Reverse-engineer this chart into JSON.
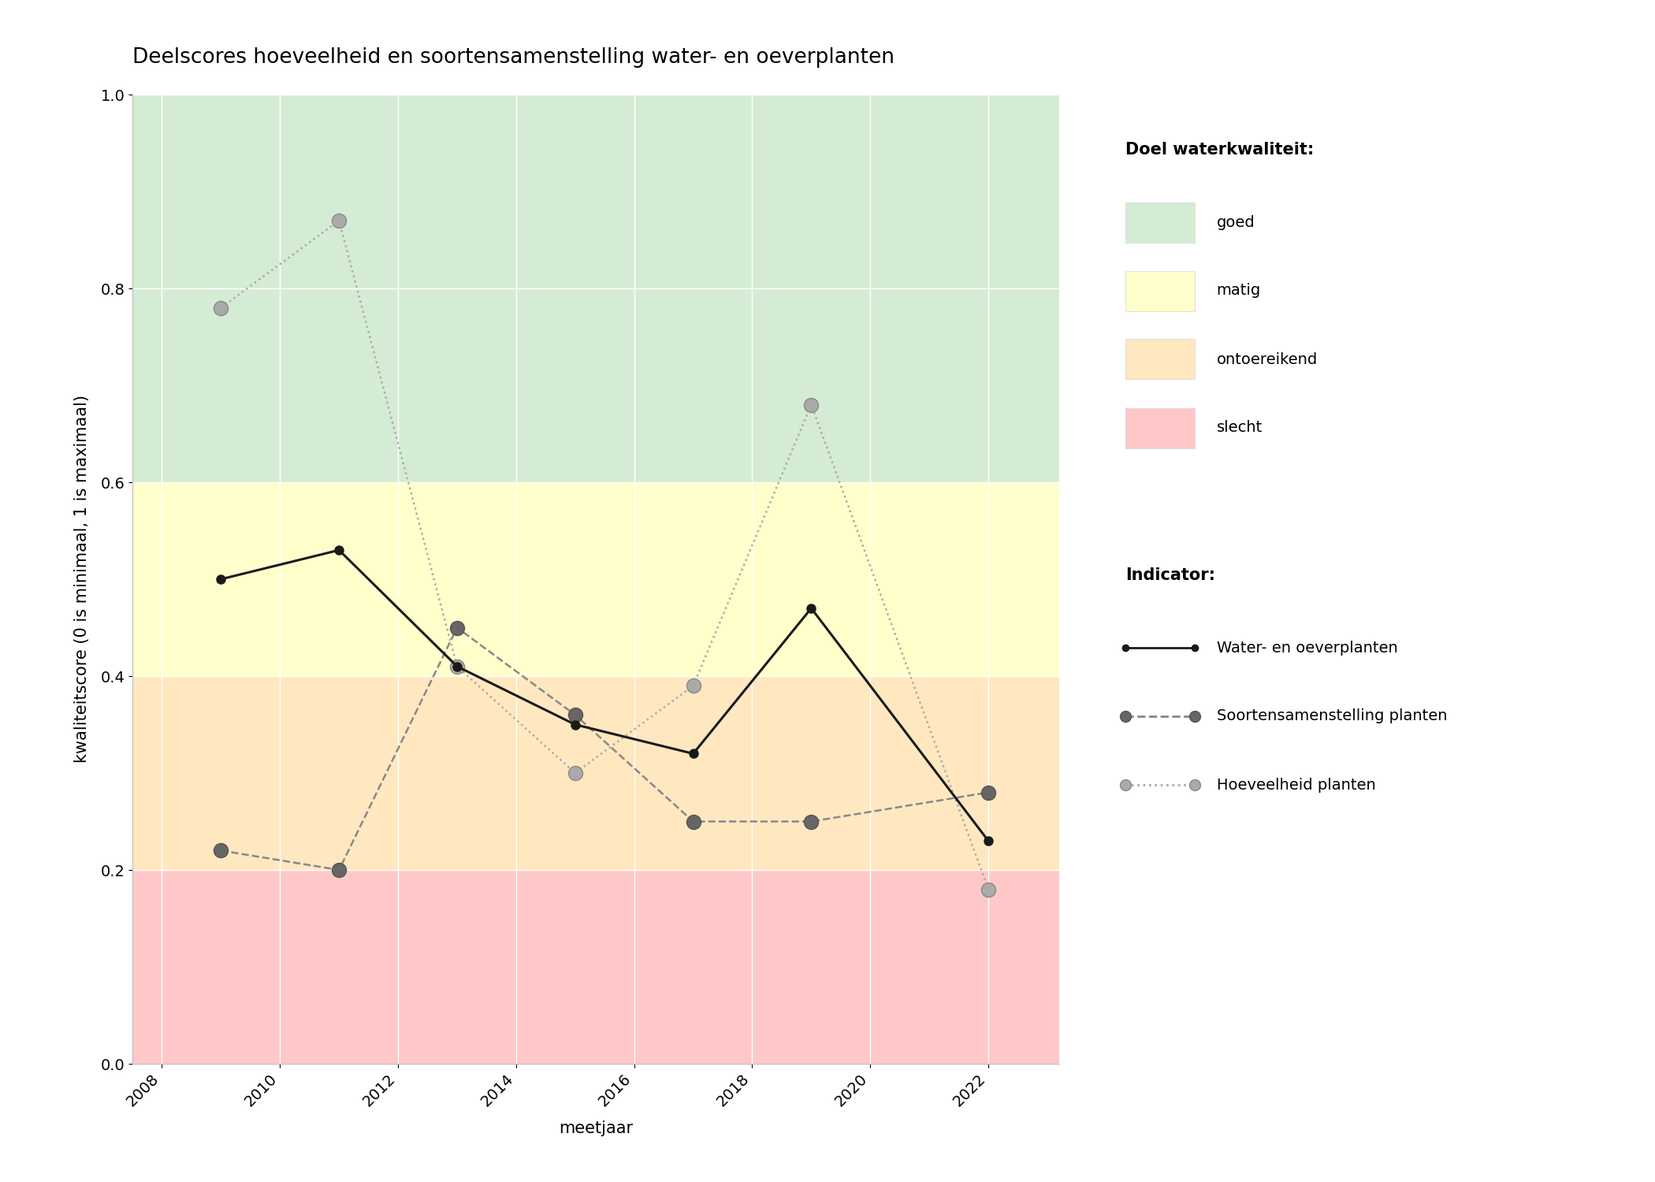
{
  "title": "Deelscores hoeveelheid en soortensamenstelling water- en oeverplanten",
  "xlabel": "meetjaar",
  "ylabel": "kwaliteitscore (0 is minimaal, 1 is maximaal)",
  "xlim": [
    2007.5,
    2023.2
  ],
  "ylim": [
    0.0,
    1.0
  ],
  "xticks": [
    2008,
    2010,
    2012,
    2014,
    2016,
    2018,
    2020,
    2022
  ],
  "yticks": [
    0.0,
    0.2,
    0.4,
    0.6,
    0.8,
    1.0
  ],
  "background_color": "#ffffff",
  "plot_bg_color": "#f7f7f7",
  "bg_zones": {
    "goed": {
      "ymin": 0.6,
      "ymax": 1.0,
      "color": "#d5ecd4"
    },
    "matig": {
      "ymin": 0.4,
      "ymax": 0.6,
      "color": "#ffffcc"
    },
    "ontoereikend": {
      "ymin": 0.2,
      "ymax": 0.4,
      "color": "#ffe8c0"
    },
    "slecht": {
      "ymin": 0.0,
      "ymax": 0.2,
      "color": "#ffc8c8"
    }
  },
  "series": {
    "water_en_oeverplanten": {
      "years": [
        2009,
        2011,
        2013,
        2015,
        2017,
        2019,
        2022
      ],
      "values": [
        0.5,
        0.53,
        0.41,
        0.35,
        0.32,
        0.47,
        0.23
      ],
      "color": "#1a1a1a",
      "linestyle": "solid",
      "linewidth": 2.2,
      "marker": "o",
      "markersize": 8,
      "markerfacecolor": "#1a1a1a",
      "markeredgecolor": "#1a1a1a",
      "label": "Water- en oeverplanten"
    },
    "soortensamenstelling": {
      "years": [
        2009,
        2011,
        2013,
        2015,
        2017,
        2019,
        2022
      ],
      "values": [
        0.22,
        0.2,
        0.45,
        0.36,
        0.25,
        0.25,
        0.28
      ],
      "color": "#888888",
      "linestyle": "dashed",
      "linewidth": 1.8,
      "marker": "o",
      "markersize": 13,
      "markerfacecolor": "#666666",
      "markeredgecolor": "#555555",
      "label": "Soortensamenstelling planten"
    },
    "hoeveelheid": {
      "years": [
        2009,
        2011,
        2013,
        2015,
        2017,
        2019,
        2022
      ],
      "values": [
        0.78,
        0.87,
        0.41,
        0.3,
        0.39,
        0.68,
        0.18
      ],
      "color": "#aaaaaa",
      "linestyle": "dotted",
      "linewidth": 1.8,
      "marker": "o",
      "markersize": 13,
      "markerfacecolor": "#aaaaaa",
      "markeredgecolor": "#888888",
      "label": "Hoeveelheid planten"
    }
  },
  "legend_bg_colors": {
    "goed": "#d5ecd4",
    "matig": "#ffffcc",
    "ontoereikend": "#ffe8c0",
    "slecht": "#ffc8c8"
  },
  "title_fontsize": 19,
  "axis_label_fontsize": 15,
  "tick_fontsize": 14,
  "legend_fontsize": 14,
  "legend_header_fontsize": 15
}
